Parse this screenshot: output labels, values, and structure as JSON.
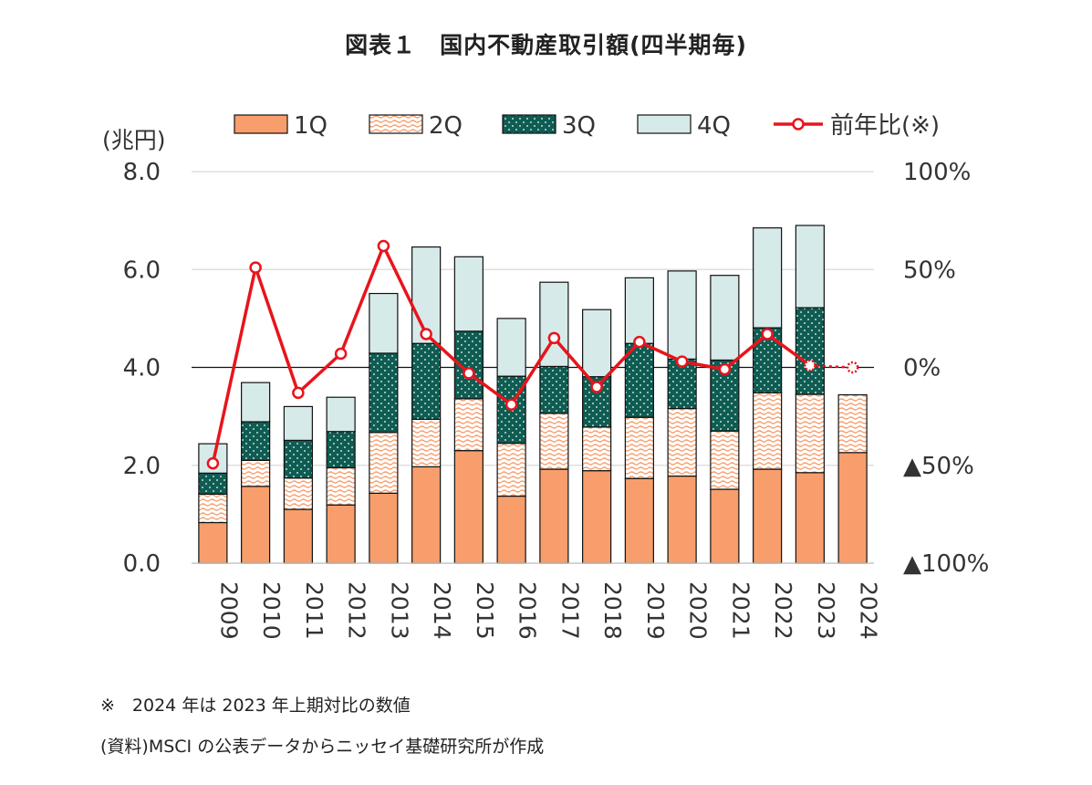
{
  "chart_data": {
    "type": "bar",
    "title": "図表１　国内不動産取引額(四半期毎)",
    "y_unit_label": "(兆円)",
    "categories": [
      "2009",
      "2010",
      "2011",
      "2012",
      "2013",
      "2014",
      "2015",
      "2016",
      "2017",
      "2018",
      "2019",
      "2020",
      "2021",
      "2022",
      "2023",
      "2024"
    ],
    "series": [
      {
        "name": "1Q",
        "kind": "stacked-bar",
        "color": "#F79E6C",
        "pattern": "solid",
        "values": [
          0.83,
          1.57,
          1.1,
          1.19,
          1.43,
          1.97,
          2.3,
          1.37,
          1.92,
          1.89,
          1.73,
          1.78,
          1.51,
          1.92,
          1.85,
          2.26
        ]
      },
      {
        "name": "2Q",
        "kind": "stacked-bar",
        "color": "#F79E6C",
        "pattern": "dotted",
        "values": [
          0.58,
          0.53,
          0.64,
          0.76,
          1.24,
          0.97,
          1.06,
          1.08,
          1.14,
          0.89,
          1.25,
          1.38,
          1.19,
          1.56,
          1.6,
          1.18
        ]
      },
      {
        "name": "3Q",
        "kind": "stacked-bar",
        "color": "#0E5C52",
        "pattern": "dotted",
        "values": [
          0.43,
          0.79,
          0.77,
          0.74,
          1.62,
          1.55,
          1.38,
          1.37,
          0.96,
          1.03,
          1.51,
          1.01,
          1.45,
          1.33,
          1.77,
          0
        ]
      },
      {
        "name": "4Q",
        "kind": "stacked-bar",
        "color": "#D7EAEA",
        "pattern": "solid",
        "values": [
          0.6,
          0.8,
          0.69,
          0.7,
          1.22,
          1.97,
          1.52,
          1.18,
          1.72,
          1.37,
          1.34,
          1.8,
          1.73,
          2.04,
          1.68,
          0
        ]
      },
      {
        "name": "前年比(※)",
        "kind": "line",
        "color": "#E8141C",
        "axis": "right",
        "values": [
          -49,
          51,
          -13,
          7,
          62,
          17,
          -3,
          -19,
          15,
          -10,
          13,
          3,
          -1,
          17,
          1,
          0
        ],
        "dashed_last_segment": true
      }
    ],
    "ylim": [
      0,
      8.0
    ],
    "y_ticks": [
      "0.0",
      "2.0",
      "4.0",
      "6.0",
      "8.0"
    ],
    "y2lim": [
      -100,
      100
    ],
    "y2_ticks": [
      "▲100%",
      "▲50%",
      "0%",
      "50%",
      "100%"
    ],
    "grid": true,
    "legend_position": "top"
  },
  "notes": {
    "line1": "※　2024 年は 2023 年上期対比の数値",
    "line2": "(資料)MSCI の公表データからニッセイ基礎研究所が作成"
  }
}
